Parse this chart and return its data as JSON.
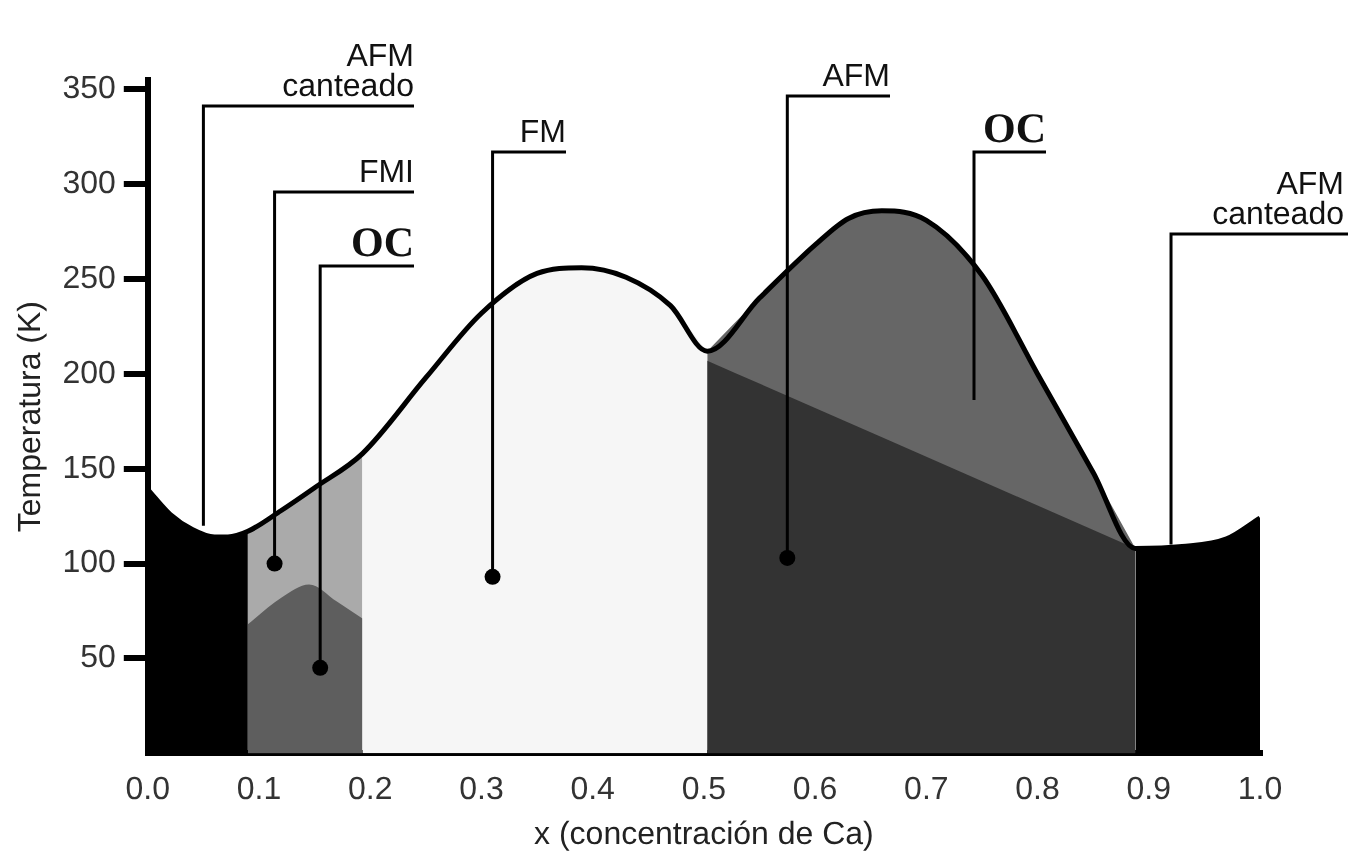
{
  "chart_data": {
    "type": "area",
    "xlabel": "x (concentración de Ca)",
    "ylabel": "Temperatura (K)",
    "xlim": [
      0,
      1
    ],
    "ylim": [
      0,
      355
    ],
    "xticks": [
      {
        "value": 0,
        "label": "0.0"
      },
      {
        "value": 0.1,
        "label": "0.1"
      },
      {
        "value": 0.2,
        "label": "0.2"
      },
      {
        "value": 0.3,
        "label": "0.3"
      },
      {
        "value": 0.4,
        "label": "0.4"
      },
      {
        "value": 0.5,
        "label": "0.5"
      },
      {
        "value": 0.6,
        "label": "0.6"
      },
      {
        "value": 0.7,
        "label": "0.7"
      },
      {
        "value": 0.8,
        "label": "0.8"
      },
      {
        "value": 0.9,
        "label": "0.9"
      },
      {
        "value": 1,
        "label": "1.0"
      }
    ],
    "yticks": [
      50,
      100,
      150,
      200,
      250,
      300,
      350
    ],
    "grid": false,
    "legend": false,
    "series": [
      {
        "color": "#000000",
        "x": [
          0,
          0.02,
          0.04,
          0.06,
          0.072,
          0.09
        ],
        "values": [
          139,
          126,
          118,
          114,
          114,
          117
        ]
      },
      {
        "color": "#aaaaaa",
        "x": [
          0.09,
          0.12,
          0.15,
          0.193
        ],
        "values": [
          117,
          128,
          140,
          158
        ]
      },
      {
        "color": "#5e5e5e",
        "x": [
          0.09,
          0.12,
          0.145,
          0.17,
          0.193
        ],
        "values": [
          68,
          82,
          89,
          80,
          71
        ]
      },
      {
        "color": "#f6f6f6",
        "x": [
          0.193,
          0.25,
          0.3,
          0.35,
          0.39,
          0.43,
          0.47,
          0.503
        ],
        "values": [
          158,
          198,
          232,
          253,
          256,
          251,
          236,
          212
        ]
      },
      {
        "color": "#666666",
        "x": [
          0.503,
          0.55,
          0.6,
          0.63,
          0.66,
          0.7,
          0.75,
          0.8,
          0.85,
          0.888
        ],
        "values": [
          212,
          240,
          268,
          282,
          286,
          281,
          252,
          200,
          148,
          108
        ]
      },
      {
        "color": "#333333",
        "x": [
          0.503,
          0.888
        ],
        "values": [
          207,
          108
        ]
      },
      {
        "color": "#000000",
        "x": [
          0.888,
          0.93,
          0.97,
          1
        ],
        "values": [
          108,
          109,
          113,
          124
        ]
      },
      {
        "type": "line",
        "color": "#000000",
        "x": [
          0,
          0.02,
          0.04,
          0.06,
          0.072,
          0.09,
          0.12,
          0.15,
          0.193,
          0.25,
          0.3,
          0.35,
          0.39,
          0.43,
          0.47,
          0.503,
          0.55,
          0.6,
          0.63,
          0.66,
          0.7,
          0.75,
          0.8,
          0.85,
          0.888,
          0.93,
          0.97,
          1
        ],
        "values": [
          139,
          126,
          118,
          114,
          114,
          117,
          128,
          140,
          158,
          198,
          232,
          253,
          256,
          251,
          236,
          212,
          240,
          268,
          282,
          286,
          281,
          252,
          200,
          148,
          108,
          109,
          113,
          124
        ]
      }
    ],
    "annotations": [
      {
        "text": "AFM\ncanteado",
        "x": 0.05,
        "y": 120
      },
      {
        "text": "FMI",
        "x": 0.114,
        "y": 100
      },
      {
        "text": "OC",
        "x": 0.155,
        "y": 45
      },
      {
        "text": "FM",
        "x": 0.31,
        "y": 93
      },
      {
        "text": "AFM",
        "x": 0.575,
        "y": 103
      },
      "OC",
      {
        "text": "AFM\ncanteado",
        "x": 0.92,
        "y": 110
      }
    ]
  }
}
